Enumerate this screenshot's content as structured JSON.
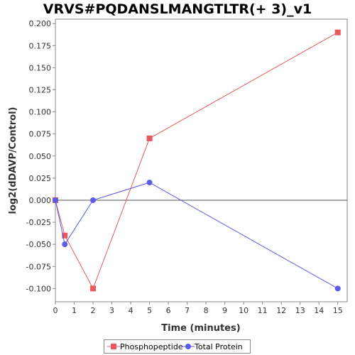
{
  "chart_data": {
    "type": "line",
    "title": "VRVS#PQDANSLMANGTLTR(+ 3)_v1",
    "xlabel": "Time (minutes)",
    "ylabel": "log2(dDAVP/Control)",
    "xlim": [
      0,
      15.5
    ],
    "ylim": [
      -0.115,
      0.205
    ],
    "x_ticks": [
      0,
      1,
      2,
      3,
      4,
      5,
      6,
      7,
      8,
      9,
      10,
      11,
      12,
      13,
      14,
      15
    ],
    "y_ticks": [
      0.2,
      0.175,
      0.15,
      0.125,
      0.1,
      0.075,
      0.05,
      0.025,
      0.0,
      -0.025,
      -0.05,
      -0.075,
      -0.1
    ],
    "y_tick_labels": [
      "0.200",
      "0.175",
      "0.150",
      "0.125",
      "0.100",
      "0.075",
      "0.050",
      "0.025",
      "0.000",
      "-0.025",
      "-0.050",
      "-0.075",
      "-0.100"
    ],
    "zero_line": true,
    "grid": false,
    "legend_position": "bottom",
    "series": [
      {
        "name": "Phosphopeptide",
        "color": "#e8595b",
        "marker": "square",
        "x": [
          0,
          0.5,
          2,
          5,
          15
        ],
        "y": [
          0.0,
          -0.04,
          -0.1,
          0.07,
          0.19
        ]
      },
      {
        "name": "Total Protein",
        "color": "#5b5be8",
        "marker": "circle",
        "x": [
          0,
          0.5,
          2,
          5,
          15
        ],
        "y": [
          0.0,
          -0.05,
          0.0,
          0.02,
          -0.1
        ]
      }
    ]
  }
}
